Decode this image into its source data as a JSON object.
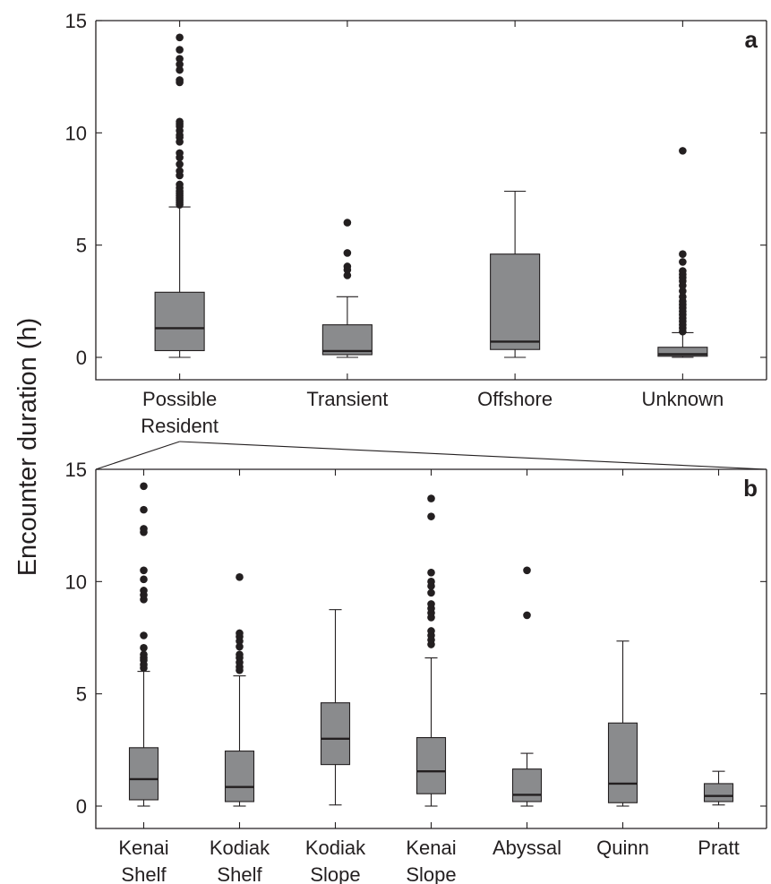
{
  "y_axis_label": "Encounter duration (h)",
  "chart_data": [
    {
      "type": "box",
      "panel_label": "a",
      "ylim": [
        -1,
        15
      ],
      "yticks": [
        0,
        5,
        10,
        15
      ],
      "grid": false,
      "colors": {
        "box": "#8a8b8d",
        "line": "#231f20"
      },
      "categories": [
        {
          "name": [
            "Possible",
            "Resident"
          ],
          "whisker_low": 0,
          "q1": 0.3,
          "median": 1.3,
          "q3": 2.9,
          "whisker_high": 6.7,
          "outliers": [
            6.8,
            6.9,
            7.0,
            7.1,
            7.2,
            7.3,
            7.4,
            7.55,
            7.7,
            8.1,
            8.3,
            8.6,
            8.9,
            9.1,
            9.6,
            9.8,
            9.9,
            10.1,
            10.3,
            10.4,
            10.5,
            12.25,
            12.35,
            12.8,
            13.05,
            13.3,
            13.7,
            14.25
          ]
        },
        {
          "name": [
            "Transient"
          ],
          "whisker_low": 0,
          "q1": 0.12,
          "median": 0.28,
          "q3": 1.45,
          "whisker_high": 2.7,
          "outliers": [
            3.65,
            3.9,
            4.05,
            4.65,
            6.0
          ]
        },
        {
          "name": [
            "Offshore"
          ],
          "whisker_low": 0,
          "q1": 0.35,
          "median": 0.7,
          "q3": 4.6,
          "whisker_high": 7.4,
          "outliers": []
        },
        {
          "name": [
            "Unknown"
          ],
          "whisker_low": 0,
          "q1": 0.05,
          "median": 0.14,
          "q3": 0.45,
          "whisker_high": 1.1,
          "outliers": [
            1.15,
            1.3,
            1.45,
            1.6,
            1.75,
            1.9,
            2.05,
            2.2,
            2.35,
            2.5,
            2.7,
            2.95,
            3.2,
            3.4,
            3.55,
            3.7,
            3.85,
            4.25,
            4.6,
            9.2
          ]
        }
      ]
    },
    {
      "type": "box",
      "panel_label": "b",
      "ylim": [
        -1,
        15
      ],
      "yticks": [
        0,
        5,
        10,
        15
      ],
      "grid": false,
      "colors": {
        "box": "#8a8b8d",
        "line": "#231f20"
      },
      "categories": [
        {
          "name": [
            "Kenai",
            "Shelf"
          ],
          "whisker_low": 0,
          "q1": 0.28,
          "median": 1.2,
          "q3": 2.6,
          "whisker_high": 6.0,
          "outliers": [
            6.15,
            6.3,
            6.5,
            6.6,
            6.75,
            7.05,
            7.6,
            9.2,
            9.4,
            9.6,
            10.1,
            10.5,
            12.2,
            12.35,
            13.2,
            14.25
          ]
        },
        {
          "name": [
            "Kodiak",
            "Shelf"
          ],
          "whisker_low": 0,
          "q1": 0.2,
          "median": 0.85,
          "q3": 2.45,
          "whisker_high": 5.8,
          "outliers": [
            6.05,
            6.2,
            6.4,
            6.6,
            6.75,
            7.1,
            7.35,
            7.55,
            7.7,
            10.2
          ]
        },
        {
          "name": [
            "Kodiak",
            "Slope"
          ],
          "whisker_low": 0.05,
          "q1": 1.85,
          "median": 3.0,
          "q3": 4.6,
          "whisker_high": 8.75,
          "outliers": []
        },
        {
          "name": [
            "Kenai",
            "Slope"
          ],
          "whisker_low": 0,
          "q1": 0.55,
          "median": 1.55,
          "q3": 3.05,
          "whisker_high": 6.6,
          "outliers": [
            7.2,
            7.4,
            7.6,
            7.8,
            8.4,
            8.6,
            8.8,
            9.0,
            9.5,
            9.8,
            10.0,
            10.4,
            12.9,
            13.7
          ]
        },
        {
          "name": [
            "Abyssal"
          ],
          "whisker_low": 0,
          "q1": 0.2,
          "median": 0.5,
          "q3": 1.65,
          "whisker_high": 2.35,
          "outliers": [
            8.5,
            10.5
          ]
        },
        {
          "name": [
            "Quinn"
          ],
          "whisker_low": 0,
          "q1": 0.15,
          "median": 1.0,
          "q3": 3.7,
          "whisker_high": 7.35,
          "outliers": []
        },
        {
          "name": [
            "Pratt"
          ],
          "whisker_low": 0.05,
          "q1": 0.2,
          "median": 0.45,
          "q3": 1.0,
          "whisker_high": 1.55,
          "outliers": []
        }
      ]
    }
  ]
}
